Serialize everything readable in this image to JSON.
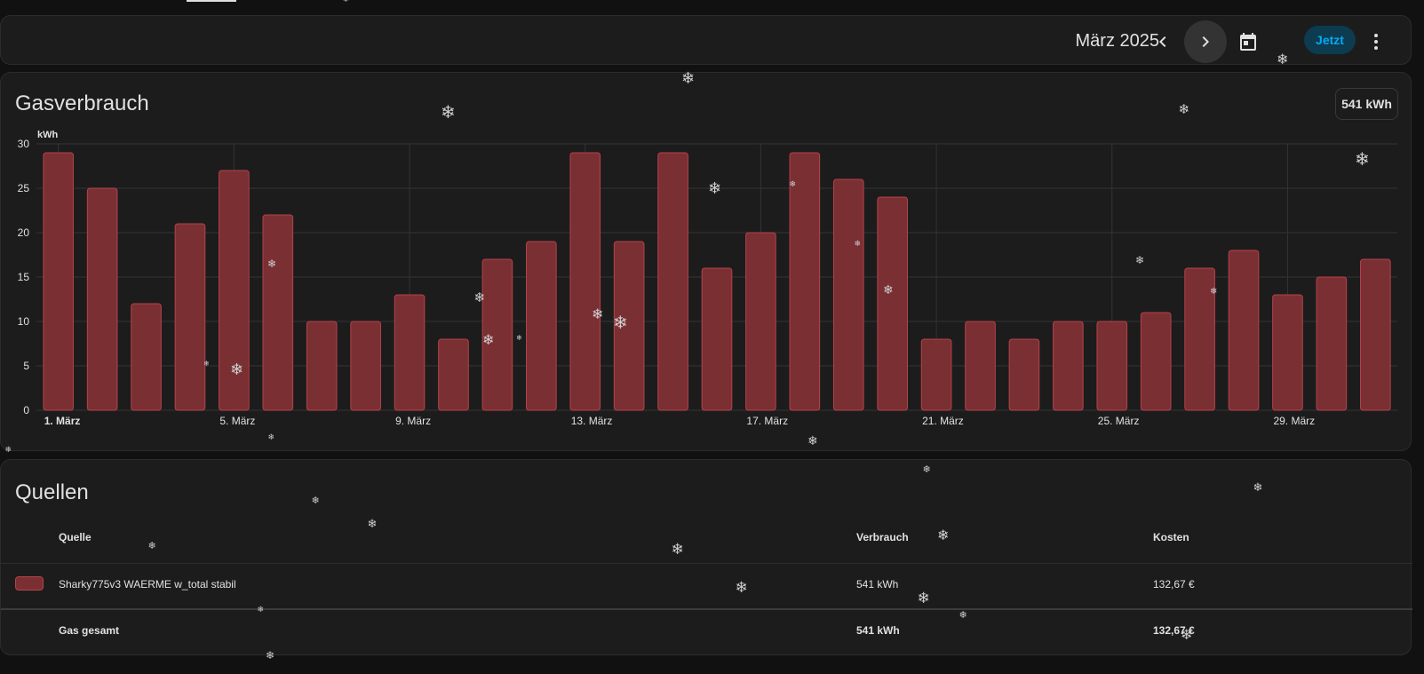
{
  "toolbar": {
    "period": "März 2025",
    "now_label": "Jetzt"
  },
  "chart_card": {
    "title": "Gasverbrauch",
    "total": "541 kWh"
  },
  "chart_data": {
    "type": "bar",
    "ylabel": "kWh",
    "ylim": [
      0,
      30
    ],
    "yticks": [
      0,
      5,
      10,
      15,
      20,
      25,
      30
    ],
    "grid": true,
    "bar_color": "#7a2f33",
    "bar_border_color": "#b5434a",
    "categories": [
      "1",
      "2",
      "3",
      "4",
      "5",
      "6",
      "7",
      "8",
      "9",
      "10",
      "11",
      "12",
      "13",
      "14",
      "15",
      "16",
      "17",
      "18",
      "19",
      "20",
      "21",
      "22",
      "23",
      "24",
      "25",
      "26",
      "27",
      "28",
      "29",
      "30",
      "31"
    ],
    "values": [
      29,
      25,
      12,
      21,
      27,
      22,
      10,
      10,
      13,
      8,
      17,
      19,
      29,
      19,
      29,
      16,
      20,
      29,
      26,
      24,
      8,
      10,
      8,
      10,
      10,
      11,
      16,
      18,
      13,
      15,
      17
    ],
    "x_tick_labels": [
      {
        "index": 0,
        "label": "1. März",
        "bold": true
      },
      {
        "index": 4,
        "label": "5. März",
        "bold": false
      },
      {
        "index": 8,
        "label": "9. März",
        "bold": false
      },
      {
        "index": 12,
        "label": "13. März",
        "bold": false
      },
      {
        "index": 16,
        "label": "17. März",
        "bold": false
      },
      {
        "index": 20,
        "label": "21. März",
        "bold": false
      },
      {
        "index": 24,
        "label": "25. März",
        "bold": false
      },
      {
        "index": 28,
        "label": "29. März",
        "bold": false
      }
    ]
  },
  "sources_card": {
    "title": "Quellen",
    "columns": {
      "source": "Quelle",
      "consumption": "Verbrauch",
      "cost": "Kosten"
    },
    "rows": [
      {
        "source": "Sharky775v3 WAERME w_total stabil",
        "consumption": "541 kWh",
        "cost": "132,67 €",
        "color": "#7a2f33"
      }
    ],
    "total": {
      "source": "Gas gesamt",
      "consumption": "541 kWh",
      "cost": "132,67 €"
    }
  },
  "colors": {
    "background": "#111111",
    "card": "#1c1c1c",
    "accent": "#03a9f4",
    "bar": "#7a2f33"
  }
}
